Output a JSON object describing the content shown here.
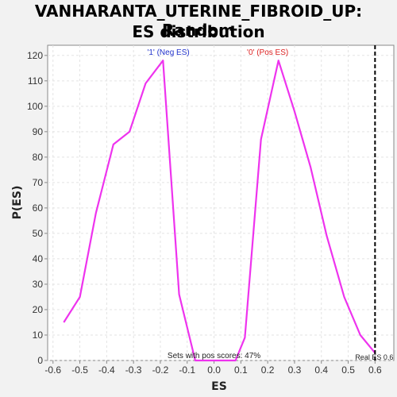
{
  "title_line1": "VANHARANTA_UTERINE_FIBROID_UP: Random",
  "title_line2": "ES distribution",
  "chart_data": {
    "type": "line",
    "xlabel": "ES",
    "ylabel": "P(ES)",
    "xlim": [
      -0.62,
      0.67
    ],
    "ylim": [
      0,
      124
    ],
    "xticks": [
      "-0.6",
      "-0.5",
      "-0.4",
      "-0.3",
      "-0.2",
      "-0.1",
      "0.0",
      "0.1",
      "0.2",
      "0.3",
      "0.4",
      "0.5",
      "0.6"
    ],
    "yticks": [
      "0",
      "10",
      "20",
      "30",
      "40",
      "50",
      "60",
      "70",
      "80",
      "90",
      "100",
      "110",
      "120"
    ],
    "grid": true,
    "series": [
      {
        "color": "#ee33ee",
        "points": [
          [
            -0.56,
            15
          ],
          [
            -0.5,
            25
          ],
          [
            -0.44,
            58
          ],
          [
            -0.375,
            85
          ],
          [
            -0.315,
            90
          ],
          [
            -0.255,
            109
          ],
          [
            -0.19,
            118
          ],
          [
            -0.13,
            26
          ],
          [
            -0.07,
            0
          ],
          [
            0.08,
            0
          ],
          [
            0.115,
            9
          ],
          [
            0.175,
            87
          ],
          [
            0.24,
            118
          ],
          [
            0.3,
            98
          ],
          [
            0.36,
            76
          ],
          [
            0.42,
            49
          ],
          [
            0.485,
            25
          ],
          [
            0.545,
            10
          ],
          [
            0.6,
            3
          ]
        ]
      }
    ],
    "real_es": 0.6,
    "annotations": {
      "neg_label": "'1' (Neg ES)",
      "pos_label": "'0' (Pos ES)",
      "sets_label": "Sets with pos scores: 47%",
      "real_es_label": "Real ES 0.6"
    }
  }
}
